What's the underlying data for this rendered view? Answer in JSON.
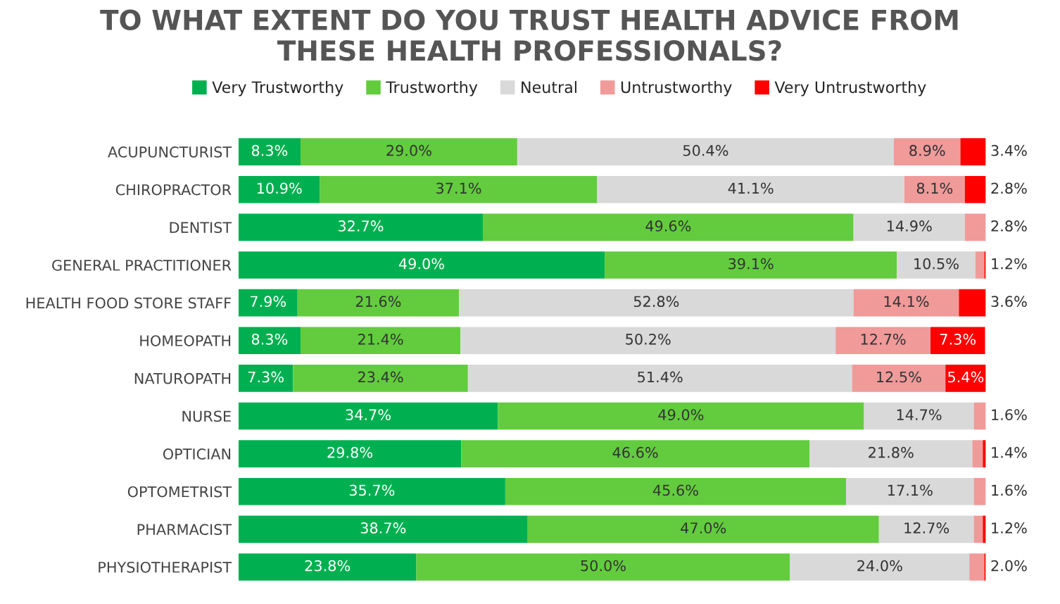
{
  "chart_data": {
    "type": "bar",
    "orientation": "horizontal",
    "stacked": true,
    "title": "TO WHAT EXTENT DO YOU TRUST HEALTH ADVICE FROM\nTHESE HEALTH PROFESSIONALS?",
    "categories": [
      "ACUPUNCTURIST",
      "CHIROPRACTOR",
      "DENTIST",
      "GENERAL PRACTITIONER",
      "HEALTH FOOD STORE STAFF",
      "HOMEOPATH",
      "NATUROPATH",
      "NURSE",
      "OPTICIAN",
      "OPTOMETRIST",
      "PHARMACIST",
      "PHYSIOTHERAPIST"
    ],
    "xlim": [
      0,
      100
    ],
    "tick_labels": "y",
    "legend": "top",
    "grid": false,
    "series": [
      {
        "name": "Very Trustworthy",
        "color": "#00b050",
        "values": [
          8.3,
          10.9,
          32.7,
          49.0,
          7.9,
          8.3,
          7.3,
          34.7,
          29.8,
          35.7,
          38.7,
          23.8
        ],
        "value_labels": [
          "8.3%",
          "10.9%",
          "32.7%",
          "49.0%",
          "7.9%",
          "8.3%",
          "7.3%",
          "34.7%",
          "29.8%",
          "35.7%",
          "38.7%",
          "23.8%"
        ]
      },
      {
        "name": "Trustworthy",
        "color": "#62cc3e",
        "values": [
          29.0,
          37.1,
          49.6,
          39.1,
          21.6,
          21.4,
          23.4,
          49.0,
          46.6,
          45.6,
          47.0,
          50.0
        ],
        "value_labels": [
          "29.0%",
          "37.1%",
          "49.6%",
          "39.1%",
          "21.6%",
          "21.4%",
          "23.4%",
          "49.0%",
          "46.6%",
          "45.6%",
          "47.0%",
          "50.0%"
        ]
      },
      {
        "name": "Neutral",
        "color": "#d9d9d9",
        "values": [
          50.4,
          41.1,
          14.9,
          10.5,
          52.8,
          50.2,
          51.4,
          14.7,
          21.8,
          17.1,
          12.7,
          24.0
        ],
        "value_labels": [
          "50.4%",
          "41.1%",
          "14.9%",
          "10.5%",
          "52.8%",
          "50.2%",
          "51.4%",
          "14.7%",
          "21.8%",
          "17.1%",
          "12.7%",
          "24.0%"
        ]
      },
      {
        "name": "Untrustworthy",
        "color": "#f09a9a",
        "values": [
          8.9,
          8.1,
          2.8,
          1.2,
          14.1,
          12.7,
          12.5,
          1.6,
          1.4,
          1.6,
          1.2,
          2.0
        ],
        "value_labels": [
          "8.9%",
          "8.1%",
          "2.8%",
          "1.2%",
          "14.1%",
          "12.7%",
          "12.5%",
          "1.6%",
          "1.4%",
          "1.6%",
          "1.2%",
          "2.0%"
        ]
      },
      {
        "name": "Very Untrustworthy",
        "color": "#ff0000",
        "values": [
          3.4,
          2.8,
          0,
          0.2,
          3.6,
          7.3,
          5.4,
          0,
          0.4,
          0,
          0.4,
          0.2
        ],
        "value_labels": [
          "3.4%",
          "2.8%",
          null,
          null,
          "3.6%",
          "7.3%",
          "5.4%",
          null,
          null,
          null,
          null,
          null
        ]
      }
    ]
  }
}
